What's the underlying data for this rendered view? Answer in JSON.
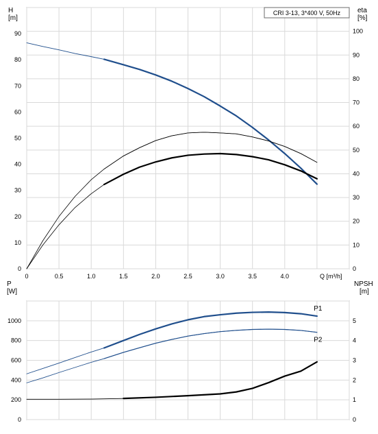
{
  "chart_data": [
    {
      "type": "line",
      "title": "CRI 3-13, 3*400 V, 50Hz",
      "xlabel": "Q [m³/h]",
      "ylabel_left": "H",
      "ylabel_left_unit": "[m]",
      "ylabel_right": "eta",
      "ylabel_right_unit": "[%]",
      "xlim": [
        0,
        4.5
      ],
      "ylim_left": [
        0,
        100
      ],
      "ylim_right": [
        0,
        110
      ],
      "x_ticks": [
        "0",
        "0.5",
        "1.0",
        "1.5",
        "2.0",
        "2.5",
        "3.0",
        "3.5",
        "4.0"
      ],
      "y_ticks_left": [
        "0",
        "10",
        "20",
        "30",
        "40",
        "50",
        "60",
        "70",
        "80",
        "90"
      ],
      "y_ticks_right": [
        "0",
        "10",
        "20",
        "30",
        "40",
        "50",
        "60",
        "70",
        "80",
        "90",
        "100"
      ],
      "grid": true,
      "series": [
        {
          "name": "H",
          "axis": "left",
          "color": "#1f4e8c",
          "highlight_range": [
            1.2,
            4.5
          ],
          "x": [
            0.0,
            0.25,
            0.5,
            0.75,
            1.0,
            1.2,
            1.5,
            1.75,
            2.0,
            2.25,
            2.5,
            2.75,
            3.0,
            3.25,
            3.5,
            3.75,
            4.0,
            4.25,
            4.5
          ],
          "y": [
            86.5,
            85.1,
            83.8,
            82.4,
            81.2,
            80.2,
            78.1,
            76.3,
            74.2,
            71.8,
            69.0,
            65.9,
            62.3,
            58.5,
            54.1,
            49.3,
            44.1,
            38.5,
            32.4
          ]
        },
        {
          "name": "eta",
          "axis": "right",
          "color": "#000000",
          "highlight_range": [
            1.2,
            4.5
          ],
          "x": [
            0.0,
            0.25,
            0.5,
            0.75,
            1.0,
            1.2,
            1.5,
            1.75,
            2.0,
            2.25,
            2.5,
            2.75,
            3.0,
            3.25,
            3.5,
            3.75,
            4.0,
            4.25,
            4.5
          ],
          "y": [
            0,
            11.8,
            22.0,
            30.5,
            37.5,
            42.0,
            47.5,
            51.0,
            54.0,
            56.0,
            57.2,
            57.5,
            57.2,
            56.8,
            55.5,
            53.8,
            51.5,
            48.5,
            44.8
          ]
        },
        {
          "name": "eta_p1",
          "axis": "right",
          "color": "#000000",
          "highlight_range": [
            1.2,
            4.5
          ],
          "x": [
            0.0,
            0.25,
            0.5,
            0.75,
            1.0,
            1.2,
            1.5,
            1.75,
            2.0,
            2.25,
            2.5,
            2.75,
            3.0,
            3.25,
            3.5,
            3.75,
            4.0,
            4.25,
            4.5
          ],
          "y": [
            0,
            10.0,
            18.5,
            25.8,
            31.6,
            35.5,
            39.8,
            42.8,
            45.0,
            46.7,
            47.8,
            48.3,
            48.5,
            48.1,
            47.2,
            45.9,
            43.8,
            41.2,
            37.9
          ]
        }
      ]
    },
    {
      "type": "line",
      "title": "",
      "xlabel": "",
      "ylabel_left": "P",
      "ylabel_left_unit": "[W]",
      "ylabel_right": "NPSH",
      "ylabel_right_unit": "[m]",
      "xlim": [
        0,
        4.5
      ],
      "ylim_left": [
        0,
        1200
      ],
      "ylim_right": [
        0,
        6
      ],
      "y_ticks_left": [
        "0",
        "200",
        "400",
        "600",
        "800",
        "1000"
      ],
      "y_ticks_right": [
        "0",
        "1",
        "2",
        "3",
        "4",
        "5"
      ],
      "grid": true,
      "series": [
        {
          "name": "P1",
          "axis": "left",
          "color": "#1f4e8c",
          "highlight_range": [
            1.2,
            4.5
          ],
          "label": "P1",
          "x": [
            0.0,
            0.25,
            0.5,
            0.75,
            1.0,
            1.2,
            1.5,
            1.75,
            2.0,
            2.25,
            2.5,
            2.75,
            3.0,
            3.25,
            3.5,
            3.75,
            4.0,
            4.25,
            4.5
          ],
          "y": [
            463,
            517,
            572,
            628,
            684,
            725,
            800,
            862,
            918,
            968,
            1010,
            1042,
            1061,
            1077,
            1085,
            1088,
            1083,
            1071,
            1047
          ]
        },
        {
          "name": "P2",
          "axis": "left",
          "color": "#1f4e8c",
          "highlight_range": [
            1.2,
            4.5
          ],
          "label": "P2",
          "x": [
            0.0,
            0.25,
            0.5,
            0.75,
            1.0,
            1.2,
            1.5,
            1.75,
            2.0,
            2.25,
            2.5,
            2.75,
            3.0,
            3.25,
            3.5,
            3.75,
            4.0,
            4.25,
            4.5
          ],
          "y": [
            372,
            422,
            476,
            528,
            580,
            617,
            680,
            727,
            773,
            811,
            845,
            870,
            890,
            903,
            912,
            915,
            912,
            902,
            883
          ]
        },
        {
          "name": "NPSH",
          "axis": "right",
          "color": "#000000",
          "highlight_range": [
            1.2,
            4.5
          ],
          "x": [
            0.0,
            0.5,
            1.0,
            1.5,
            2.0,
            2.5,
            3.0,
            3.25,
            3.5,
            3.75,
            4.0,
            4.25,
            4.5
          ],
          "y": [
            1.03,
            1.03,
            1.04,
            1.07,
            1.13,
            1.21,
            1.3,
            1.4,
            1.58,
            1.87,
            2.2,
            2.45,
            2.92
          ]
        }
      ]
    }
  ]
}
